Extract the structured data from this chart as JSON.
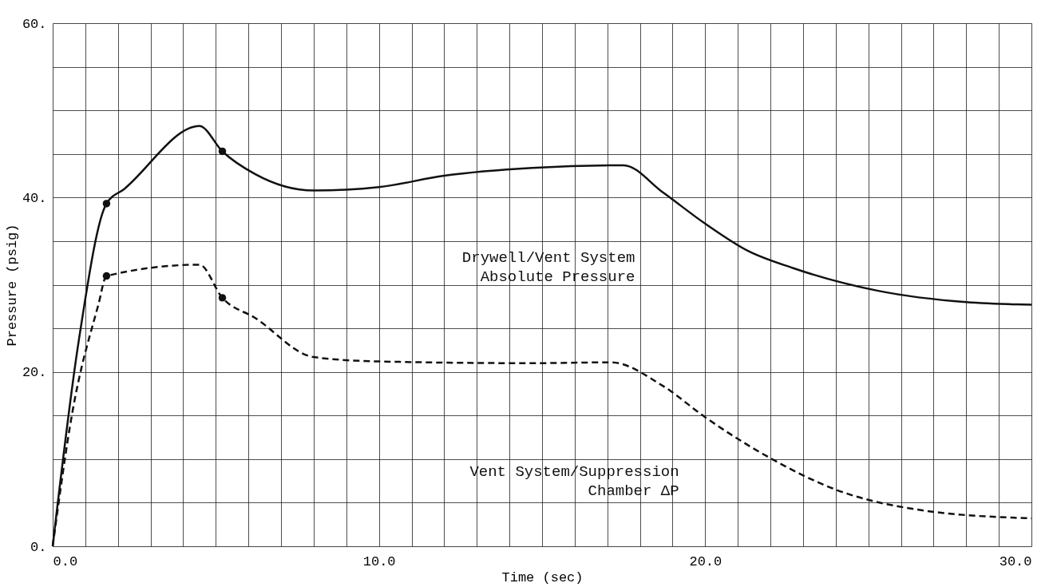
{
  "chart_data": {
    "type": "line",
    "xlabel": "Time (sec)",
    "ylabel": "Pressure (psig)",
    "xlim": [
      0,
      30
    ],
    "ylim": [
      0,
      60
    ],
    "xticks": [
      {
        "value": 0,
        "label": "0.0"
      },
      {
        "value": 1,
        "label": null
      },
      {
        "value": 2,
        "label": null
      },
      {
        "value": 3,
        "label": null
      },
      {
        "value": 4,
        "label": null
      },
      {
        "value": 5,
        "label": null
      },
      {
        "value": 6,
        "label": null
      },
      {
        "value": 7,
        "label": null
      },
      {
        "value": 8,
        "label": null
      },
      {
        "value": 9,
        "label": null
      },
      {
        "value": 10,
        "label": "10.0"
      },
      {
        "value": 11,
        "label": null
      },
      {
        "value": 12,
        "label": null
      },
      {
        "value": 13,
        "label": null
      },
      {
        "value": 14,
        "label": null
      },
      {
        "value": 15,
        "label": null
      },
      {
        "value": 16,
        "label": null
      },
      {
        "value": 17,
        "label": null
      },
      {
        "value": 18,
        "label": null
      },
      {
        "value": 19,
        "label": null
      },
      {
        "value": 20,
        "label": "20.0"
      },
      {
        "value": 21,
        "label": null
      },
      {
        "value": 22,
        "label": null
      },
      {
        "value": 23,
        "label": null
      },
      {
        "value": 24,
        "label": null
      },
      {
        "value": 25,
        "label": null
      },
      {
        "value": 26,
        "label": null
      },
      {
        "value": 27,
        "label": null
      },
      {
        "value": 28,
        "label": null
      },
      {
        "value": 29,
        "label": null
      },
      {
        "value": 30,
        "label": "30.0"
      }
    ],
    "yticks": [
      {
        "value": 0,
        "label": "0."
      },
      {
        "value": 5,
        "label": null
      },
      {
        "value": 10,
        "label": null
      },
      {
        "value": 15,
        "label": null
      },
      {
        "value": 20,
        "label": "20."
      },
      {
        "value": 25,
        "label": null
      },
      {
        "value": 30,
        "label": null
      },
      {
        "value": 35,
        "label": null
      },
      {
        "value": 40,
        "label": "40."
      },
      {
        "value": 45,
        "label": null
      },
      {
        "value": 50,
        "label": null
      },
      {
        "value": 55,
        "label": null
      },
      {
        "value": 60,
        "label": "60."
      }
    ],
    "grid": true,
    "series": [
      {
        "type": "line",
        "color": "#111111",
        "line_style": "solid",
        "x": [
          0,
          0.8,
          1.65,
          2.2,
          4.5,
          5.2,
          6.2,
          8,
          10,
          12,
          14.7,
          17.5,
          18.7,
          20,
          21.3,
          22.7,
          25.3,
          28,
          30
        ],
        "values": [
          0,
          23.6,
          39.3,
          41,
          48.2,
          45.3,
          42.7,
          40.8,
          41.2,
          42.5,
          43.4,
          43.7,
          40.6,
          37,
          33.9,
          31.9,
          29.3,
          28,
          27.7
        ]
      },
      {
        "type": "line",
        "color": "#111111",
        "line_style": "dashed",
        "x": [
          0,
          0.6,
          1.4,
          1.65,
          4.5,
          5.2,
          6.2,
          8,
          10,
          14.7,
          17.1,
          18.7,
          20,
          22,
          24,
          26.7,
          30
        ],
        "values": [
          0,
          15.3,
          27.7,
          31,
          32.3,
          28.5,
          26.2,
          21.7,
          21.2,
          21,
          21.1,
          18.4,
          14.8,
          10.1,
          6.5,
          4.1,
          3.2
        ]
      },
      {
        "type": "scatter",
        "color": "#111111",
        "marker": "circle",
        "x": [
          1.65,
          5.2,
          1.65,
          5.2
        ],
        "values": [
          39.3,
          45.3,
          31,
          28.5
        ]
      }
    ],
    "annotations": [
      "Drywell/Vent System\nAbsolute Pressure",
      "Vent System/Suppression\nChamber ΔP"
    ]
  }
}
